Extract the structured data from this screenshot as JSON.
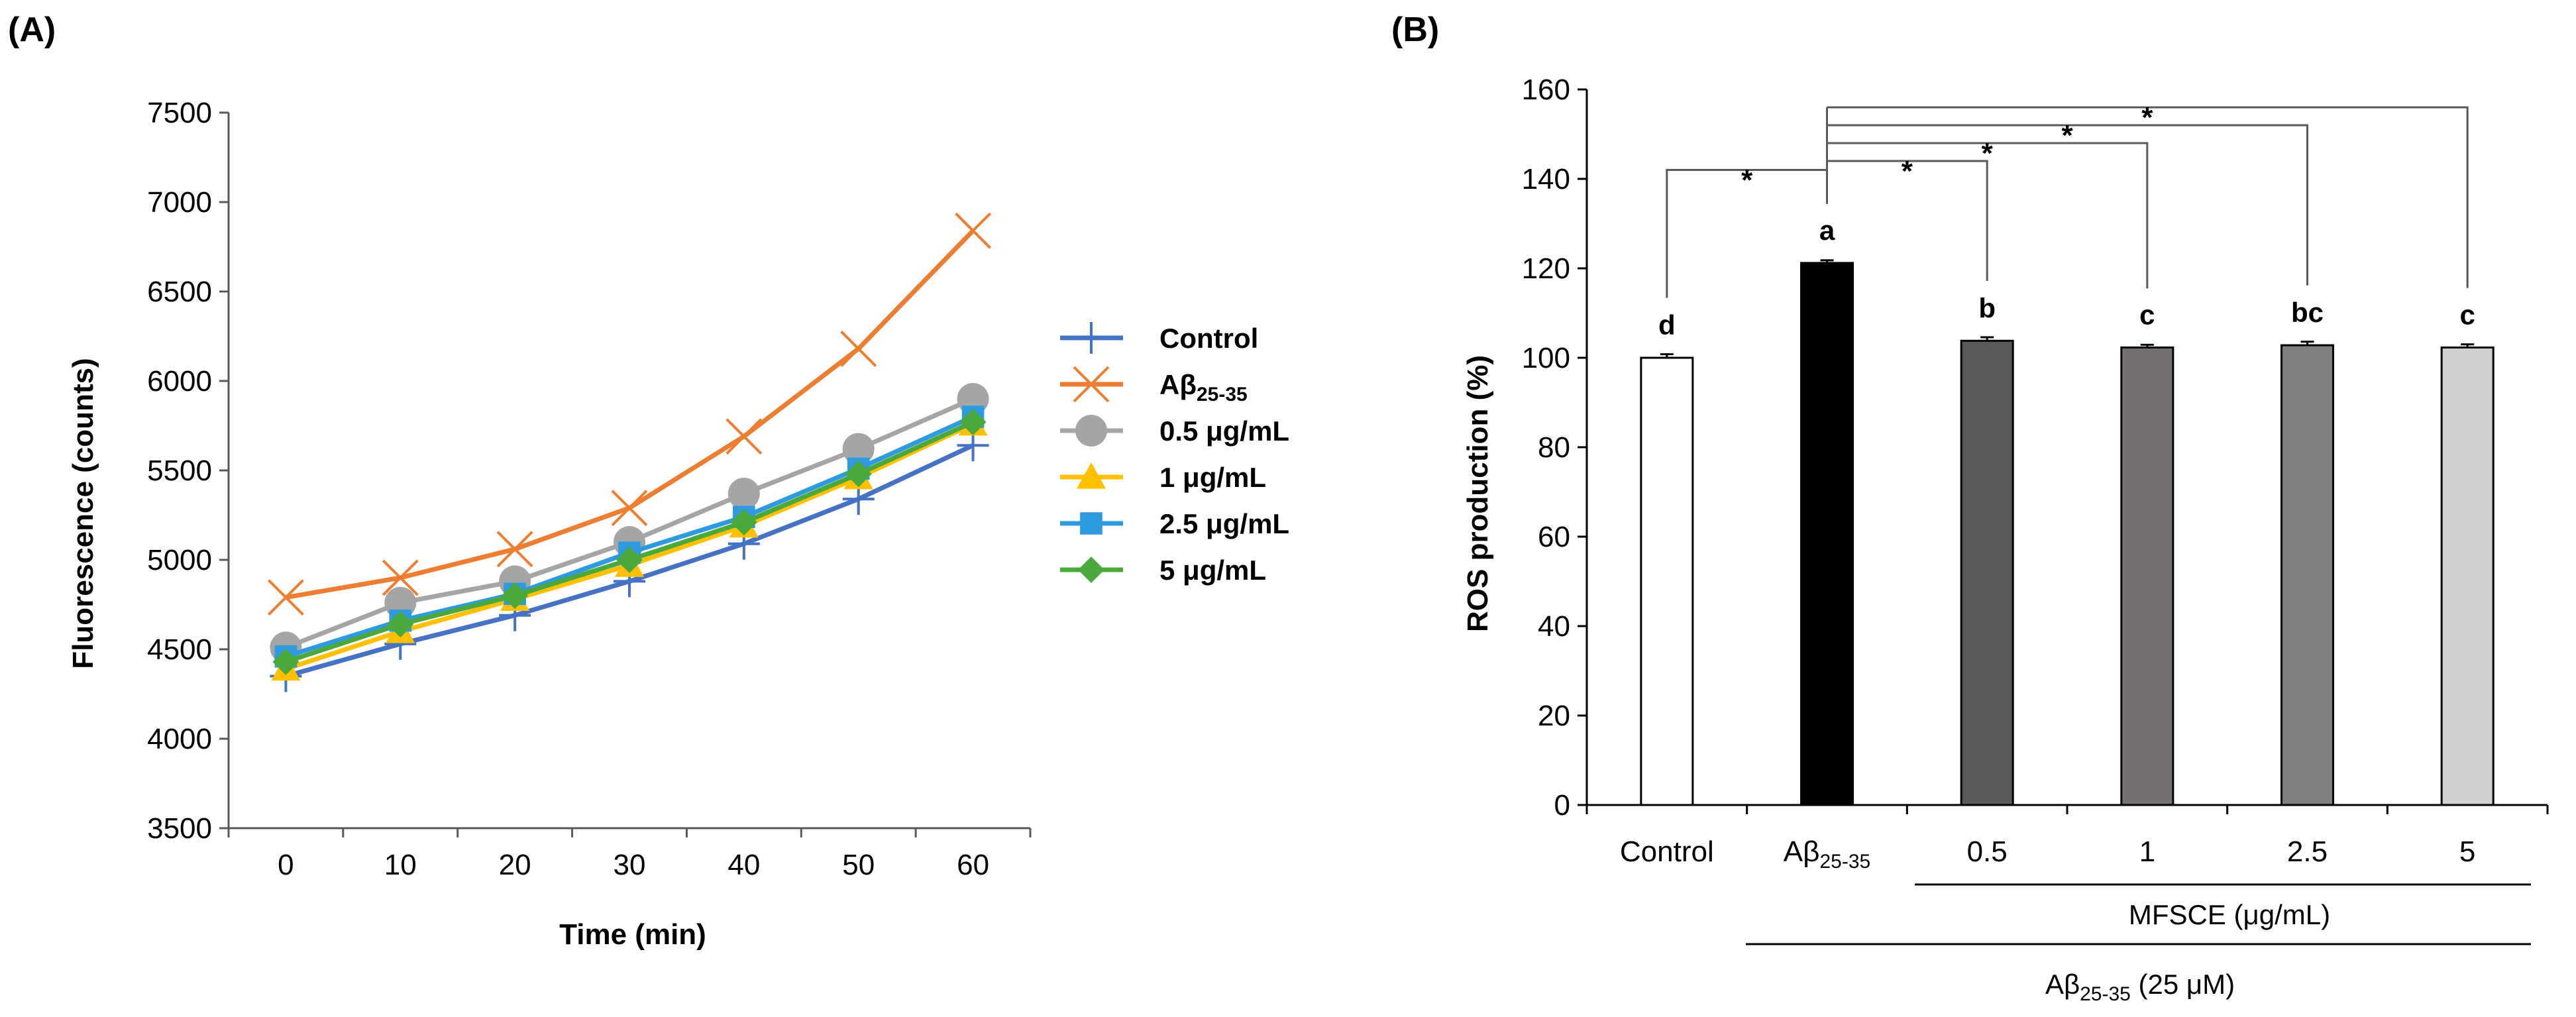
{
  "chart_data": [
    {
      "panel_label": "(A)",
      "type": "line",
      "xlabel": "Time (min)",
      "ylabel": "Fluorescence (counts)",
      "x": [
        0,
        10,
        20,
        30,
        40,
        50,
        60
      ],
      "x_ticks": [
        "0",
        "10",
        "20",
        "30",
        "40",
        "50",
        "60"
      ],
      "ylim": [
        3500,
        7500
      ],
      "y_ticks": [
        "3500",
        "4000",
        "4500",
        "5000",
        "5500",
        "6000",
        "6500",
        "7000",
        "7500"
      ],
      "legend_position": "right",
      "series": [
        {
          "name": "Control",
          "name_main": "Control",
          "name_sub": "",
          "color": "#4472C4",
          "marker": "plus",
          "values": [
            4350,
            4530,
            4690,
            4880,
            5090,
            5340,
            5640
          ]
        },
        {
          "name": "Aβ25-35",
          "name_main": "Aβ",
          "name_sub": "25-35",
          "color": "#ED7D31",
          "marker": "x",
          "values": [
            4790,
            4900,
            5060,
            5290,
            5690,
            6180,
            6840
          ]
        },
        {
          "name": "0.5 μg/mL",
          "name_main": "0.5 μg/mL",
          "name_sub": "",
          "color": "#A5A5A5",
          "marker": "circle",
          "values": [
            4510,
            4760,
            4880,
            5100,
            5370,
            5620,
            5900
          ]
        },
        {
          "name": "1 μg/mL",
          "name_main": "1 μg/mL",
          "name_sub": "",
          "color": "#FFC000",
          "marker": "triangle",
          "values": [
            4390,
            4600,
            4780,
            4970,
            5190,
            5460,
            5760
          ]
        },
        {
          "name": "2.5 μg/mL",
          "name_main": "2.5 μg/mL",
          "name_sub": "",
          "color": "#2E9BE0",
          "marker": "square",
          "values": [
            4460,
            4660,
            4810,
            5040,
            5240,
            5510,
            5800
          ]
        },
        {
          "name": "5 μg/mL",
          "name_main": "5 μg/mL",
          "name_sub": "",
          "color": "#4BA83A",
          "marker": "diamond",
          "values": [
            4430,
            4640,
            4800,
            5000,
            5210,
            5480,
            5770
          ]
        }
      ]
    },
    {
      "panel_label": "(B)",
      "type": "bar",
      "ylabel": "ROS production (%)",
      "ylim": [
        0,
        160
      ],
      "y_ticks": [
        "0",
        "20",
        "40",
        "60",
        "80",
        "100",
        "120",
        "140",
        "160"
      ],
      "categories": [
        {
          "main": "Control",
          "sub": ""
        },
        {
          "main": "Aβ",
          "sub": "25-35"
        },
        {
          "main": "0.5",
          "sub": ""
        },
        {
          "main": "1",
          "sub": ""
        },
        {
          "main": "2.5",
          "sub": ""
        },
        {
          "main": "5",
          "sub": ""
        }
      ],
      "values": [
        100.0,
        121.2,
        103.8,
        102.3,
        102.8,
        102.3
      ],
      "errors": [
        0.8,
        0.6,
        0.8,
        0.6,
        0.8,
        0.7
      ],
      "colors": [
        "#FFFFFF",
        "#000000",
        "#595959",
        "#767171",
        "#808080",
        "#D0CECE"
      ],
      "significance_letters": [
        "d",
        "a",
        "b",
        "c",
        "bc",
        "c"
      ],
      "comparisons": [
        {
          "from": 1,
          "to": 0,
          "label": "*"
        },
        {
          "from": 1,
          "to": 2,
          "label": "*"
        },
        {
          "from": 1,
          "to": 3,
          "label": "*"
        },
        {
          "from": 1,
          "to": 4,
          "label": "*"
        },
        {
          "from": 1,
          "to": 5,
          "label": "*"
        }
      ],
      "group_labels": {
        "inner": "MFSCE (μg/mL)",
        "outer_main": "Aβ",
        "outer_sub": "25-35",
        "outer_suffix": " (25 μM)"
      }
    }
  ]
}
